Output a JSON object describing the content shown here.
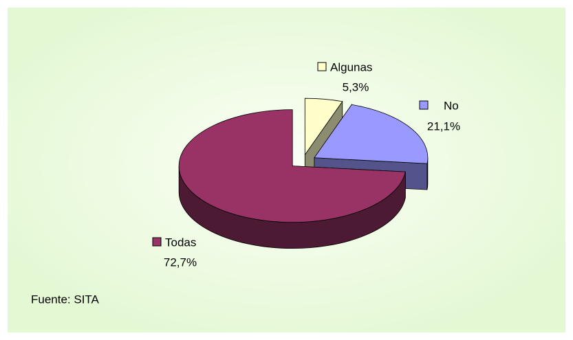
{
  "chart_data": {
    "type": "pie",
    "categories": [
      "Algunas",
      "No",
      "Todas"
    ],
    "values": [
      5.3,
      21.1,
      72.7
    ],
    "value_labels": [
      "5,3%",
      "21,1%",
      "72,7%"
    ],
    "colors": [
      "#ffffcc",
      "#9999ff",
      "#993366"
    ],
    "annotation": "Fuente: SITA",
    "three_d": true
  }
}
